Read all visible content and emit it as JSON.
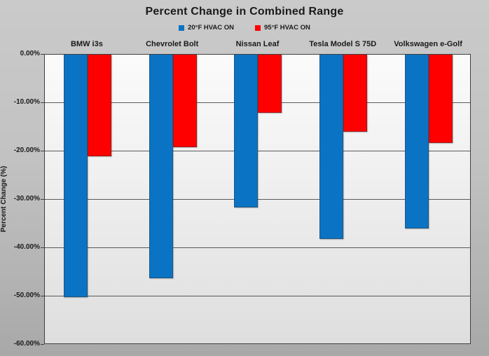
{
  "title": "Percent Change in Combined Range",
  "chart_data": {
    "type": "bar",
    "orientation": "vertical-negative",
    "title": "Percent Change in Combined Range",
    "categories": [
      "BMW i3s",
      "Chevrolet Bolt",
      "Nissan Leaf",
      "Tesla Model S 75D",
      "Volkswagen e-Golf"
    ],
    "series": [
      {
        "name": "20°F HVAC ON",
        "color": "#0b73c3",
        "values": [
          -50.4,
          -46.5,
          -31.7,
          -38.3,
          -36.1
        ]
      },
      {
        "name": "95°F HVAC ON",
        "color": "#fe0000",
        "values": [
          -21.1,
          -19.2,
          -12.1,
          -16.0,
          -18.4
        ]
      }
    ],
    "xlabel": "",
    "ylabel": "Percent Change (%)",
    "ylim": [
      -60,
      0
    ],
    "y_tick_labels": [
      "0.00%",
      "-10.00%",
      "-20.00%",
      "-30.00%",
      "-40.00%",
      "-50.00%",
      "-60.00%"
    ],
    "grid": true,
    "legend_position": "top",
    "category_labels_position": "above-plot"
  },
  "style": {
    "plot_border_color": "#3f3f3f",
    "background_top": "#cacaca",
    "background_bottom": "#a8a8a8"
  }
}
